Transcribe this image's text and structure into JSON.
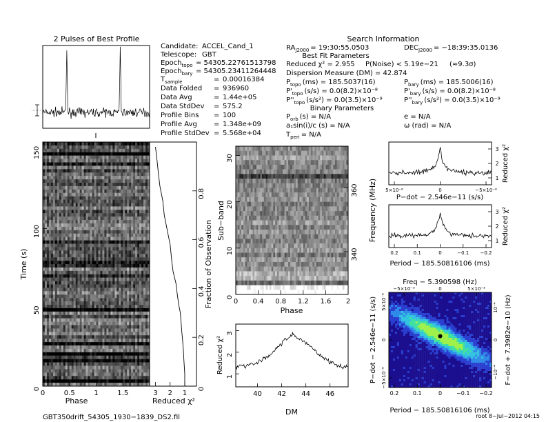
{
  "header": {
    "profile_title": "2 Pulses of Best Profile",
    "search_title": "Search Information",
    "best_fit_title": "Best Fit Parameters",
    "binary_title": "Binary Parameters"
  },
  "info_left": [
    {
      "label": "Candidate:",
      "value": "ACCEL_Cand_1"
    },
    {
      "label": "Telescope:",
      "value": "GBT"
    },
    {
      "label": "Epoch",
      "sub": "topo",
      "value": "= 54305.22761513798"
    },
    {
      "label": "Epoch",
      "sub": "bary",
      "value": "= 54305.23411264448"
    },
    {
      "label": "T",
      "sub": "sample",
      "value": "0.00016384"
    },
    {
      "label": "Data Folded",
      "value": "936960"
    },
    {
      "label": "Data Avg",
      "value": "1.44e+05"
    },
    {
      "label": "Data StdDev",
      "value": "575.2"
    },
    {
      "label": "Profile Bins",
      "value": "100"
    },
    {
      "label": "Profile Avg",
      "value": "1.348e+09"
    },
    {
      "label": "Profile StdDev",
      "value": "5.568e+04"
    }
  ],
  "info_right": {
    "ra": {
      "label": "RA",
      "sub": "J2000",
      "value": "= 19:30:55.0503"
    },
    "dec": {
      "label": "DEC",
      "sub": "J2000",
      "value": "= −18:39:35.0136"
    },
    "chi2": "Reduced χ² = 2.955",
    "pnoise": "P(Noise) < 5.19e−21",
    "sigma": "(≈9.3σ)",
    "dm": "Dispersion Measure (DM) = 42.874",
    "ptopo": {
      "label": "P",
      "sub": "topo",
      "value": "(ms) =  185.5037(16)"
    },
    "pbary": {
      "label": "P",
      "sub": "bary",
      "value": "(ms) =  185.5006(16)"
    },
    "pdtopo": {
      "label": "P'",
      "sub": "topo",
      "value": "(s/s) = 0.0(8.2)×10⁻⁸"
    },
    "pdbary": {
      "label": "P'",
      "sub": "bary",
      "value": "(s/s) = 0.0(8.2)×10⁻⁸"
    },
    "pddtopo": {
      "label": "P''",
      "sub": "topo",
      "value": "(s/s²) = 0.0(3.5)×10⁻⁹"
    },
    "pddbary": {
      "label": "P''",
      "sub": "bary",
      "value": "(s/s²) = 0.0(3.5)×10⁻⁹"
    },
    "porb": {
      "label": "P",
      "sub": "orb",
      "value": "(s) = N/A"
    },
    "asini": "a₁sin(i)/c (s) = N/A",
    "tperi": {
      "label": "T",
      "sub": "peri",
      "value": "= N/A"
    },
    "ecc": "e = N/A",
    "omega": "ω (rad) = N/A"
  },
  "footer": {
    "filename": "GBT350drift_54305_1930−1839_DS2.fil",
    "stamp": "root   8−Jul−2012 04:15"
  },
  "chart_data": [
    {
      "id": "profile",
      "type": "line",
      "title": "2 Pulses of Best Profile",
      "xlim": [
        0,
        2
      ],
      "pulse_phases": [
        0.45,
        1.45
      ]
    },
    {
      "id": "time-vs-phase",
      "type": "heatmap",
      "xlabel": "Phase",
      "ylabel": "Time (s)",
      "xlim": [
        0,
        2
      ],
      "ylim": [
        0,
        155
      ],
      "xticks": [
        "0",
        "0.5",
        "1",
        "1.5"
      ],
      "yticks": [
        "0",
        "50",
        "100",
        "150"
      ]
    },
    {
      "id": "time-chi2",
      "type": "line",
      "xlabel": "Reduced χ²",
      "ylabel": "Fraction of Observation",
      "xlim": [
        3.4,
        0.2
      ],
      "xticks": [
        "3",
        "2",
        "1"
      ],
      "yticks": [
        "0",
        "0.2",
        "0.4",
        "0.6",
        "0.8"
      ],
      "x": [
        3.0,
        2.9,
        2.8,
        2.7,
        2.5,
        2.4,
        2.2,
        2.0,
        1.9,
        1.8,
        1.6,
        1.5,
        1.4,
        1.3,
        1.25,
        1.2,
        1.15,
        1.1,
        1.05,
        1.0,
        1.0
      ],
      "y": [
        0.98,
        0.93,
        0.87,
        0.82,
        0.76,
        0.7,
        0.64,
        0.58,
        0.52,
        0.47,
        0.42,
        0.37,
        0.33,
        0.3,
        0.26,
        0.22,
        0.19,
        0.15,
        0.1,
        0.05,
        0.0
      ]
    },
    {
      "id": "subband-vs-phase",
      "type": "heatmap",
      "xlabel": "Phase",
      "ylabel": "Sub−band",
      "y2label": "Frequency (MHz)",
      "xlim": [
        0,
        2
      ],
      "ylim": [
        0,
        32
      ],
      "xticks": [
        "0",
        "0.4",
        "0.8",
        "1.2",
        "1.6",
        "2"
      ],
      "yticks": [
        "0",
        "10",
        "20",
        "30"
      ],
      "y2ticks": [
        "340",
        "360"
      ]
    },
    {
      "id": "dm-chi2",
      "type": "line",
      "xlabel": "DM",
      "ylabel": "Reduced χ²",
      "xlim": [
        38.2,
        47.5
      ],
      "ylim": [
        0.4,
        3.3
      ],
      "xticks": [
        "40",
        "42",
        "44",
        "46"
      ],
      "yticks": [
        "1",
        "2",
        "3"
      ],
      "x": [
        38.2,
        38.6,
        39.0,
        39.4,
        39.8,
        40.2,
        40.6,
        41.0,
        41.4,
        41.8,
        42.2,
        42.6,
        42.9,
        43.2,
        43.6,
        44.0,
        44.4,
        44.8,
        45.2,
        45.6,
        46.0,
        46.4,
        46.8,
        47.2,
        47.5
      ],
      "y": [
        1.3,
        1.4,
        1.35,
        1.5,
        1.45,
        1.6,
        1.75,
        1.85,
        2.1,
        2.3,
        2.5,
        2.7,
        2.85,
        2.7,
        2.6,
        2.4,
        2.3,
        2.05,
        1.85,
        1.7,
        1.55,
        1.45,
        1.35,
        1.3,
        1.35
      ]
    },
    {
      "id": "pdot-chi2",
      "type": "line",
      "xlabel": "P−dot − 2.546e−11 (s/s)",
      "ylabel": "Reduced χ²",
      "xticks": [
        "5×10⁻⁶",
        "0",
        "−5×10⁻⁶"
      ],
      "yticks": [
        "1",
        "2",
        "3"
      ],
      "peak_at": 0
    },
    {
      "id": "period-chi2",
      "type": "line",
      "xlabel": "Period − 185.50816106 (ms)",
      "ylabel": "Reduced χ²",
      "xticks": [
        "0.2",
        "0.1",
        "0",
        "−0.1",
        "−0.2"
      ],
      "yticks": [
        "1",
        "2",
        "3"
      ],
      "peak_at": 0
    },
    {
      "id": "period-pdot",
      "type": "heatmap",
      "title": "Freq − 5.390598 (Hz)",
      "xlabel": "Period − 185.50816106 (ms)",
      "ylabel": "P−dot − 2.546e−11 (s/s)",
      "y2label": "F−dot + 7.3982e−10 (Hz)",
      "xticks": [
        "0.2",
        "0.1",
        "0",
        "−0.1",
        "−0.2"
      ],
      "x2ticks": [
        "−5×10⁻³",
        "0",
        "5×10⁻³"
      ],
      "yticks": [
        "−5×10⁻⁶",
        "0",
        "5×10⁻⁶"
      ],
      "y2ticks": [
        "−10⁻⁴",
        "0",
        "10⁻⁴"
      ],
      "colors": [
        "#1b0f8f",
        "#2a3fd0",
        "#2f8ae8",
        "#33c4e0",
        "#3fe0a0",
        "#9ff04a",
        "#000000"
      ]
    }
  ]
}
